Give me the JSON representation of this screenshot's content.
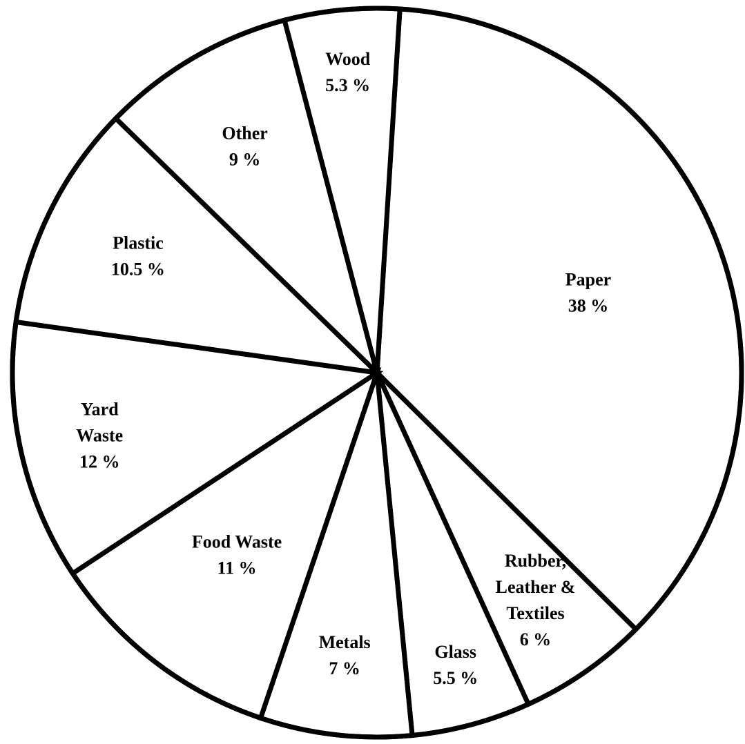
{
  "chart_data": {
    "type": "pie",
    "start_category": "Paper",
    "direction": "clockwise",
    "colors": {
      "slice_fill": "#ffffff",
      "slice_stroke": "#000000",
      "text": "#000000"
    },
    "slices": [
      {
        "category": "Paper",
        "value": 38,
        "label_lines": [
          "Paper",
          "38 %"
        ]
      },
      {
        "category": "Rubber, Leather & Textiles",
        "value": 6,
        "label_lines": [
          "Rubber,",
          "Leather &",
          "Textiles",
          "6 %"
        ]
      },
      {
        "category": "Glass",
        "value": 5.5,
        "label_lines": [
          "Glass",
          "5.5 %"
        ]
      },
      {
        "category": "Metals",
        "value": 7,
        "label_lines": [
          "Metals",
          "7 %"
        ]
      },
      {
        "category": "Food Waste",
        "value": 11,
        "label_lines": [
          "Food Waste",
          "11 %"
        ]
      },
      {
        "category": "Yard Waste",
        "value": 12,
        "label_lines": [
          "Yard",
          "Waste",
          "12 %"
        ]
      },
      {
        "category": "Plastic",
        "value": 10.5,
        "label_lines": [
          "Plastic",
          "10.5 %"
        ]
      },
      {
        "category": "Other",
        "value": 9,
        "label_lines": [
          "Other",
          "9 %"
        ]
      },
      {
        "category": "Wood",
        "value": 5.3,
        "label_lines": [
          "Wood",
          "5.3 %"
        ]
      }
    ]
  }
}
